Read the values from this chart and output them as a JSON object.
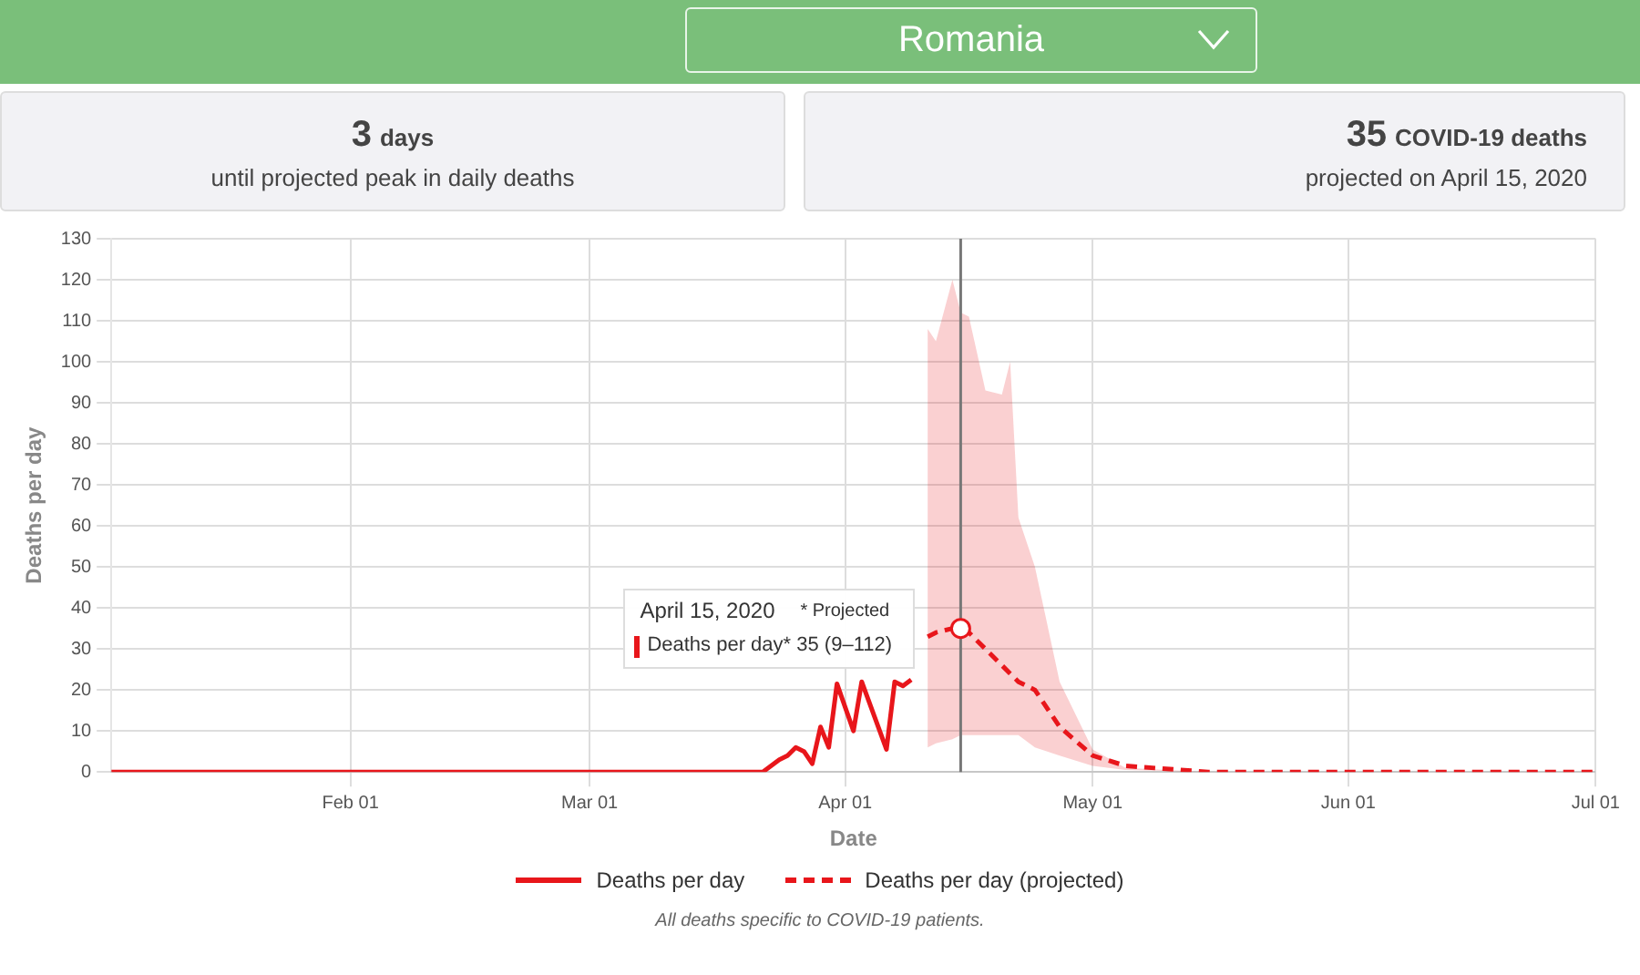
{
  "chart_data": [
    {
      "type": "other",
      "title": "Romania",
      "annotations": [
        "3",
        "days",
        "until projected peak in daily deaths",
        "35",
        "COVID-19 deaths",
        "projected on April 15, 2020"
      ]
    },
    {
      "type": "line",
      "xlabel": "Date",
      "ylabel": "Deaths per day",
      "xlim": [
        "2020-01-03",
        "2020-07-01"
      ],
      "ylim": [
        0,
        130
      ],
      "xticks": [
        {
          "value": "2020-02-01",
          "label": "Feb 01"
        },
        {
          "value": "2020-03-01",
          "label": "Mar 01"
        },
        {
          "value": "2020-04-01",
          "label": "Apr 01"
        },
        {
          "value": "2020-05-01",
          "label": "May 01"
        },
        {
          "value": "2020-06-01",
          "label": "Jun 01"
        },
        {
          "value": "2020-07-01",
          "label": "Jul 01"
        }
      ],
      "yticks": [
        0,
        10,
        20,
        30,
        40,
        50,
        60,
        70,
        80,
        90,
        100,
        110,
        120,
        130
      ],
      "grid": true,
      "legend": "bottom",
      "marker": "none",
      "series": [
        {
          "name": "Deaths per day",
          "color": "#e8161b",
          "line_style": "solid",
          "x": [
            "2020-01-03",
            "2020-03-22",
            "2020-03-24",
            "2020-03-25",
            "2020-03-26",
            "2020-03-27",
            "2020-03-28",
            "2020-03-29",
            "2020-03-30",
            "2020-03-31",
            "2020-04-02",
            "2020-04-03",
            "2020-04-06",
            "2020-04-07",
            "2020-04-08",
            "2020-04-09"
          ],
          "values": [
            0,
            0,
            3,
            4,
            6,
            5,
            2,
            11,
            6,
            21.5,
            10,
            22,
            5.5,
            22,
            21,
            22.5
          ]
        },
        {
          "name": "Deaths per day (projected)",
          "color": "#e8161b",
          "line_style": "dashed",
          "x": [
            "2020-04-11",
            "2020-04-12",
            "2020-04-14",
            "2020-04-15",
            "2020-04-16",
            "2020-04-18",
            "2020-04-20",
            "2020-04-21",
            "2020-04-22",
            "2020-04-24",
            "2020-04-27",
            "2020-05-01",
            "2020-05-05",
            "2020-05-15",
            "2020-07-01"
          ],
          "values": [
            33,
            34,
            35,
            35,
            34,
            30,
            26,
            24,
            22,
            20,
            11,
            4,
            1.5,
            0,
            0
          ],
          "lower": [
            6,
            7,
            8,
            9,
            9,
            9,
            9,
            9,
            9,
            6,
            4,
            1.5,
            0.5,
            0,
            0
          ],
          "upper": [
            108,
            105,
            120,
            112,
            111,
            93,
            92,
            100,
            62,
            50,
            22,
            5.5,
            1,
            0,
            0
          ]
        }
      ],
      "ref_lines": [
        {
          "axis": "x",
          "value": "2020-04-15",
          "color": "#777777"
        }
      ],
      "annotations": [
        "April 15, 2020",
        "* Projected",
        "Deaths per day* 35 (9–112)",
        "All deaths specific to COVID-19 patients."
      ]
    }
  ]
}
